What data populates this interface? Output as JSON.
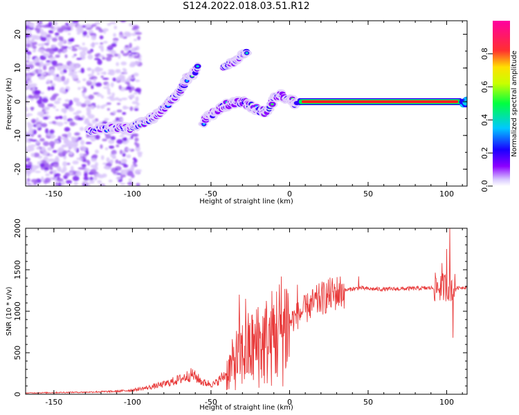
{
  "title": "S124.2022.018.03.51.R12",
  "chart_data": [
    {
      "type": "heatmap",
      "name": "spectrogram",
      "xlabel": "Height of straight line (km)",
      "ylabel": "Frequency (Hz)",
      "xlim": [
        -168,
        113
      ],
      "ylim": [
        -25,
        24
      ],
      "xticks": [
        -150,
        -100,
        -50,
        0,
        50,
        100
      ],
      "yticks": [
        -20,
        -10,
        0,
        10,
        20
      ],
      "colorbar": {
        "label": "Normalized spectral amplitude",
        "range": [
          0,
          1
        ],
        "ticks": [
          0.0,
          0.2,
          0.4,
          0.6,
          0.8
        ],
        "tick_labels": [
          "0.0",
          "0.2",
          "0.4",
          "0.6",
          "0.8"
        ],
        "colors": [
          "#ffffff",
          "#8c00ff",
          "#1a00ff",
          "#00c8ff",
          "#00ff40",
          "#ffe000",
          "#ff3030",
          "#ff00a0"
        ]
      },
      "signal_track": [
        {
          "x": -128,
          "y": -8.5
        },
        {
          "x": -118,
          "y": -8
        },
        {
          "x": -110,
          "y": -7.5
        },
        {
          "x": -102,
          "y": -8
        },
        {
          "x": -95,
          "y": -6.5
        },
        {
          "x": -88,
          "y": -5
        },
        {
          "x": -82,
          "y": -3
        },
        {
          "x": -76,
          "y": 0
        },
        {
          "x": -70,
          "y": 3
        },
        {
          "x": -65,
          "y": 7
        },
        {
          "x": -58,
          "y": 10
        }
      ],
      "signal_track_2": [
        {
          "x": -55,
          "y": -6
        },
        {
          "x": -48,
          "y": -3
        },
        {
          "x": -40,
          "y": -1
        },
        {
          "x": -30,
          "y": 0
        },
        {
          "x": -22,
          "y": -2
        },
        {
          "x": -15,
          "y": -3
        },
        {
          "x": -8,
          "y": 2
        },
        {
          "x": 0,
          "y": 1
        },
        {
          "x": 5,
          "y": -1
        }
      ],
      "upper_track": [
        {
          "x": -42,
          "y": 10
        },
        {
          "x": -35,
          "y": 12
        },
        {
          "x": -30,
          "y": 14
        },
        {
          "x": -27,
          "y": 15
        }
      ],
      "carrier_line": {
        "x_start": 5,
        "x_end": 110,
        "y": 0
      },
      "noise_region_x": [
        -168,
        -95
      ]
    },
    {
      "type": "line",
      "name": "snr",
      "xlabel": "Height of straight line (km)",
      "ylabel": "SNR (10 * v/v)",
      "xlim": [
        -168,
        113
      ],
      "ylim": [
        0,
        2000
      ],
      "xticks": [
        -150,
        -100,
        -50,
        0,
        50,
        100
      ],
      "yticks": [
        0,
        500,
        1000,
        1500,
        2000
      ],
      "color": "#e83a3a",
      "envelope": [
        [
          -168,
          15
        ],
        [
          -150,
          20
        ],
        [
          -130,
          25
        ],
        [
          -110,
          35
        ],
        [
          -100,
          50
        ],
        [
          -90,
          80
        ],
        [
          -80,
          120
        ],
        [
          -70,
          180
        ],
        [
          -62,
          240
        ],
        [
          -55,
          140
        ],
        [
          -48,
          120
        ],
        [
          -40,
          250
        ],
        [
          -34,
          420
        ],
        [
          -28,
          520
        ],
        [
          -22,
          560
        ],
        [
          -16,
          620
        ],
        [
          -10,
          700
        ],
        [
          -5,
          800
        ],
        [
          0,
          870
        ],
        [
          5,
          950
        ],
        [
          10,
          1020
        ],
        [
          15,
          1090
        ],
        [
          20,
          1150
        ],
        [
          25,
          1190
        ],
        [
          30,
          1220
        ],
        [
          35,
          1250
        ],
        [
          40,
          1270
        ],
        [
          45,
          1280
        ],
        [
          50,
          1270
        ],
        [
          60,
          1265
        ],
        [
          70,
          1270
        ],
        [
          80,
          1275
        ],
        [
          90,
          1280
        ],
        [
          95,
          1290
        ],
        [
          100,
          1300
        ],
        [
          105,
          1280
        ],
        [
          113,
          1290
        ]
      ],
      "spikes": [
        [
          -32,
          1200
        ],
        [
          -28,
          1150
        ],
        [
          -20,
          1050
        ],
        [
          -12,
          1000
        ],
        [
          -2,
          1270
        ],
        [
          5,
          1320
        ],
        [
          12,
          1000
        ],
        [
          44,
          1420
        ],
        [
          97,
          1580
        ],
        [
          100,
          1750
        ],
        [
          102,
          2000
        ],
        [
          104,
          680
        ]
      ]
    }
  ]
}
